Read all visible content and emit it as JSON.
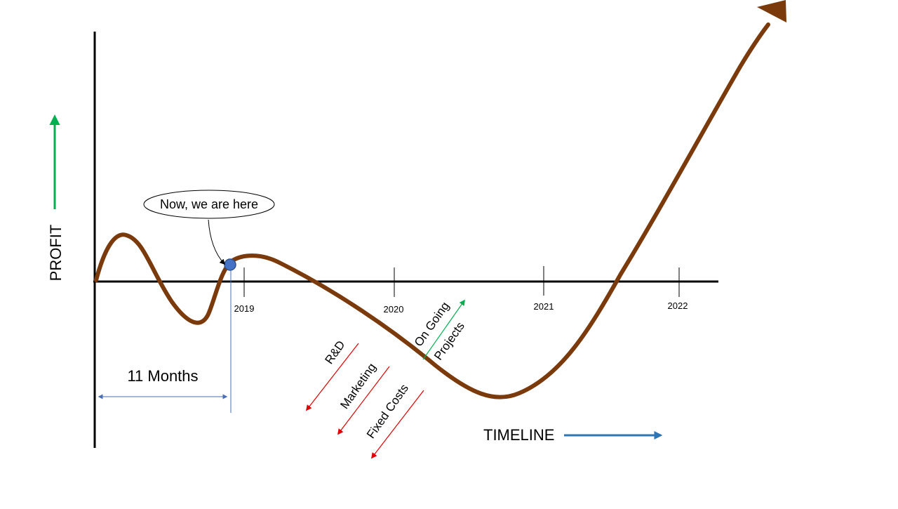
{
  "axes": {
    "y_label": "PROFIT",
    "x_label": "TIMELINE"
  },
  "timeline": {
    "ticks": [
      "2019",
      "2020",
      "2021",
      "2022"
    ]
  },
  "callout": {
    "text": "Now, we are here"
  },
  "duration": {
    "label": "11 Months"
  },
  "decreasing_factors": [
    "R&D",
    "Marketing",
    "Fixed Costs"
  ],
  "increasing_factor": {
    "line1": "On Going",
    "line2": "Projects"
  },
  "colors": {
    "curve": "#7a3a0c",
    "axis": "#000000",
    "profit_arrow": "#00b050",
    "timeline_arrow": "#2e75b6",
    "cost_arrow": "#e00000",
    "growth_arrow": "#00b050",
    "marker_fill": "#4472c4",
    "measure_line": "#4a6fb5"
  }
}
